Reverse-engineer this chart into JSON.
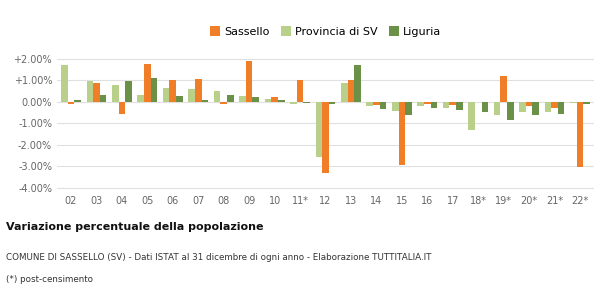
{
  "categories": [
    "02",
    "03",
    "04",
    "05",
    "06",
    "07",
    "08",
    "09",
    "10",
    "11*",
    "12",
    "13",
    "14",
    "15",
    "16",
    "17",
    "18*",
    "19*",
    "20*",
    "21*",
    "22*"
  ],
  "sassello": [
    -0.1,
    0.85,
    -0.55,
    1.75,
    1.0,
    1.05,
    -0.1,
    1.9,
    0.2,
    1.0,
    -3.3,
    1.0,
    -0.15,
    -2.95,
    -0.1,
    -0.15,
    0.0,
    1.2,
    -0.2,
    -0.3,
    -3.05
  ],
  "provincia_sv": [
    1.7,
    0.95,
    0.8,
    0.3,
    0.65,
    0.6,
    0.5,
    0.25,
    0.15,
    -0.1,
    -2.55,
    0.85,
    -0.2,
    -0.45,
    -0.2,
    -0.3,
    -1.3,
    -0.6,
    -0.5,
    -0.5,
    -0.05
  ],
  "liguria": [
    0.1,
    0.3,
    0.95,
    1.1,
    0.25,
    0.1,
    0.3,
    0.2,
    0.1,
    -0.05,
    -0.1,
    1.7,
    -0.35,
    -0.6,
    -0.3,
    -0.4,
    -0.5,
    -0.85,
    -0.6,
    -0.55,
    -0.1
  ],
  "color_sassello": "#f07d27",
  "color_provincia": "#b8d08a",
  "color_liguria": "#6a9147",
  "title": "Variazione percentuale della popolazione",
  "footnote1": "COMUNE DI SASSELLO (SV) - Dati ISTAT al 31 dicembre di ogni anno - Elaborazione TUTTITALIA.IT",
  "footnote2": "(*) post-censimento",
  "ylim": [
    -4.2,
    2.5
  ],
  "yticks": [
    -4.0,
    -3.0,
    -2.0,
    -1.0,
    0.0,
    1.0,
    2.0
  ],
  "background_color": "#ffffff",
  "grid_color": "#e0e0e0"
}
